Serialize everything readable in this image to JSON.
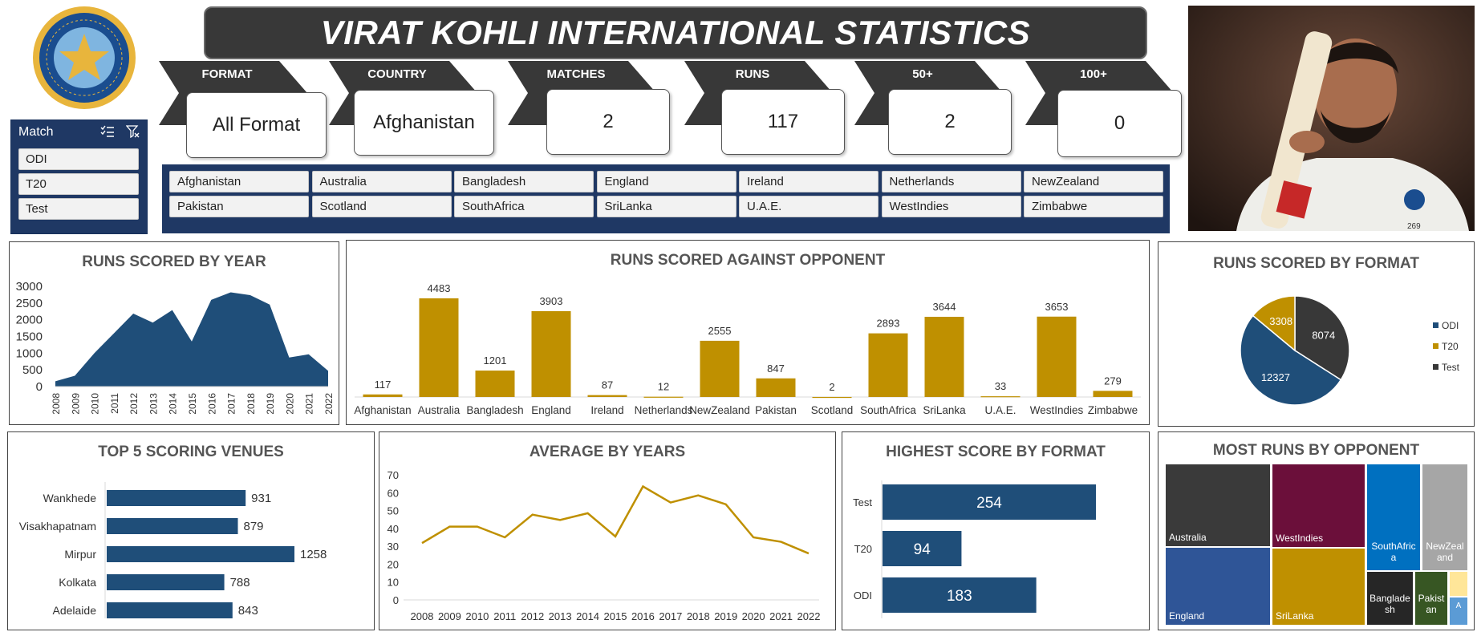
{
  "header": {
    "title": "VIRAT KOHLI INTERNATIONAL STATISTICS"
  },
  "logo": {
    "icon": "bcci-logo-icon",
    "colors": {
      "ring": "#1a4d8f",
      "gold": "#e8b53c",
      "sky": "#7fb5e0"
    }
  },
  "match_slicer": {
    "title": "Match",
    "icons": [
      "multi-select-icon",
      "clear-filter-icon"
    ],
    "items": [
      "ODI",
      "T20",
      "Test"
    ]
  },
  "kpis": [
    {
      "label": "FORMAT",
      "value": "All Format"
    },
    {
      "label": "COUNTRY",
      "value": "Afghanistan"
    },
    {
      "label": "MATCHES",
      "value": "2"
    },
    {
      "label": "RUNS",
      "value": "117"
    },
    {
      "label": "50+",
      "value": "2"
    },
    {
      "label": "100+",
      "value": "0"
    }
  ],
  "country_slicer": {
    "items": [
      "Afghanistan",
      "Australia",
      "Bangladesh",
      "England",
      "Ireland",
      "Netherlands",
      "NewZealand",
      "Pakistan",
      "Scotland",
      "SouthAfrica",
      "SriLanka",
      "U.A.E.",
      "WestIndies",
      "Zimbabwe"
    ]
  },
  "photo": {
    "jersey_number": "269"
  },
  "colors": {
    "navy": "#1f4e79",
    "gold": "#bf9000",
    "dark": "#383838",
    "panel_bg": "#1f3864"
  },
  "panels": {
    "runs_by_year": "RUNS SCORED BY YEAR",
    "runs_vs_opponent": "RUNS SCORED AGAINST OPPONENT",
    "runs_by_format": "RUNS SCORED BY FORMAT",
    "top_venues": "TOP 5 SCORING VENUES",
    "average_by_years": "AVERAGE BY YEARS",
    "highest_by_format": "HIGHEST SCORE BY FORMAT",
    "most_runs_opponent": "MOST RUNS BY OPPONENT"
  },
  "chart_data": [
    {
      "id": "runs_by_year",
      "type": "area",
      "title": "RUNS SCORED BY YEAR",
      "x": [
        "2008",
        "2009",
        "2010",
        "2011",
        "2012",
        "2013",
        "2014",
        "2015",
        "2016",
        "2017",
        "2018",
        "2019",
        "2020",
        "2021",
        "2022"
      ],
      "values": [
        160,
        325,
        1000,
        1590,
        2185,
        1915,
        2290,
        1350,
        2595,
        2820,
        2735,
        2455,
        870,
        965,
        470
      ],
      "ylim": [
        0,
        3000
      ],
      "yticks": [
        0,
        500,
        1000,
        1500,
        2000,
        2500,
        3000
      ],
      "grid": false
    },
    {
      "id": "runs_vs_opponent",
      "type": "bar",
      "title": "RUNS SCORED AGAINST OPPONENT",
      "categories": [
        "Afghanistan",
        "Australia",
        "Bangladesh",
        "England",
        "Ireland",
        "Netherlands",
        "NewZealand",
        "Pakistan",
        "Scotland",
        "SouthAfrica",
        "SriLanka",
        "U.A.E.",
        "WestIndies",
        "Zimbabwe"
      ],
      "values": [
        117,
        4483,
        1201,
        3903,
        87,
        12,
        2555,
        847,
        2,
        2893,
        3644,
        33,
        3653,
        279
      ]
    },
    {
      "id": "runs_by_format",
      "type": "pie",
      "title": "RUNS SCORED BY FORMAT",
      "labels": [
        "ODI",
        "T20",
        "Test"
      ],
      "values": [
        12327,
        3308,
        8074
      ],
      "colors": [
        "#1f4e79",
        "#bf9000",
        "#383838"
      ],
      "legend": "right"
    },
    {
      "id": "top_venues",
      "type": "bar",
      "orientation": "horizontal",
      "title": "TOP 5 SCORING VENUES",
      "categories": [
        "Wankhede",
        "Visakhapatnam",
        "Mirpur",
        "Kolkata",
        "Adelaide"
      ],
      "values": [
        931,
        879,
        1258,
        788,
        843
      ]
    },
    {
      "id": "average_by_years",
      "type": "line",
      "title": "AVERAGE BY YEARS",
      "x": [
        "2008",
        "2009",
        "2010",
        "2011",
        "2012",
        "2013",
        "2014",
        "2015",
        "2016",
        "2017",
        "2018",
        "2019",
        "2020",
        "2021",
        "2022"
      ],
      "values": [
        31.8,
        41,
        41,
        35,
        47.7,
        44.7,
        48.5,
        35.5,
        63.5,
        54.5,
        58.5,
        53.5,
        35,
        32.5,
        26
      ],
      "ylim": [
        0,
        70
      ],
      "yticks": [
        0,
        10,
        20,
        30,
        40,
        50,
        60,
        70
      ]
    },
    {
      "id": "highest_by_format",
      "type": "bar",
      "orientation": "horizontal",
      "title": "HIGHEST SCORE BY FORMAT",
      "categories": [
        "Test",
        "T20",
        "ODI"
      ],
      "values": [
        254,
        94,
        183
      ]
    },
    {
      "id": "most_runs_opponent",
      "type": "treemap",
      "title": "MOST RUNS BY OPPONENT",
      "labels": [
        "Australia",
        "England",
        "WestIndies",
        "SriLanka",
        "SouthAfrica",
        "NewZealand",
        "Bangladesh",
        "Pakistan",
        "",
        "A"
      ],
      "colors": [
        "#3a3a3a",
        "#2f5597",
        "#6b0f3a",
        "#bf9000",
        "#0070c0",
        "#a6a6a6",
        "#262626",
        "#375623",
        "#ffe699",
        "#5b9bd5"
      ]
    }
  ]
}
